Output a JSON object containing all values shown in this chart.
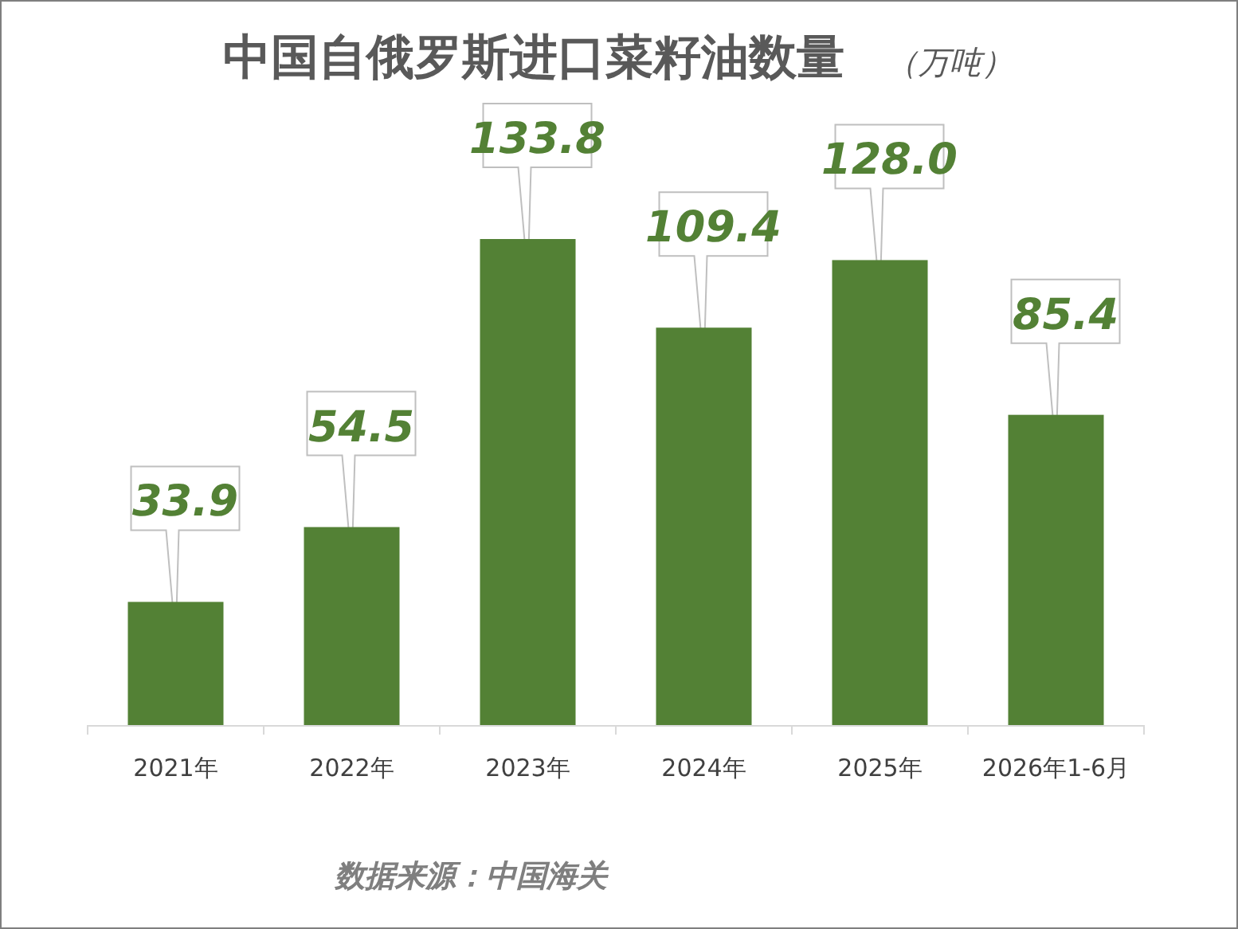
{
  "chart_data": {
    "type": "bar",
    "title": "中国自俄罗斯进口菜籽油数量",
    "subtitle": "（万吨）",
    "categories": [
      "2021年",
      "2022年",
      "2023年",
      "2024年",
      "2025年",
      "2026年1-6月"
    ],
    "values": [
      33.9,
      54.5,
      133.8,
      109.4,
      128.0,
      85.4
    ],
    "value_labels": [
      "33.9",
      "54.5",
      "133.8",
      "109.4",
      "128.0",
      "85.4"
    ],
    "color": "#538135",
    "annotations": [
      "数据来源：中国海关"
    ]
  }
}
